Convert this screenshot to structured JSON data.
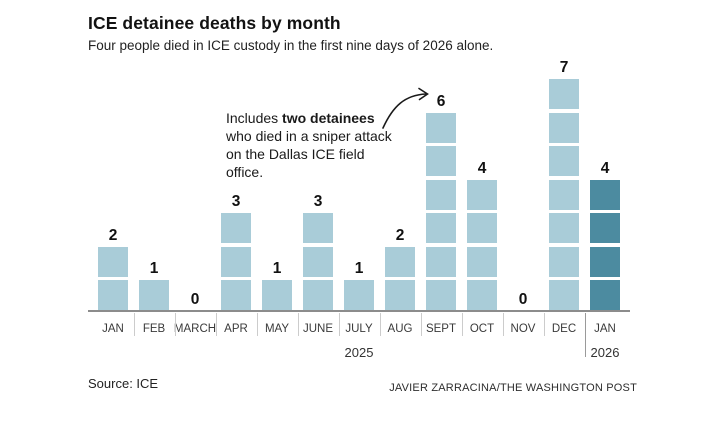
{
  "chart_data": {
    "type": "bar",
    "title": "ICE detainee deaths by month",
    "subtitle": "Four people died in ICE custody in the first nine days of 2026 alone.",
    "categories": [
      "JAN",
      "FEB",
      "MARCH",
      "APR",
      "MAY",
      "JUNE",
      "JULY",
      "AUG",
      "SEPT",
      "OCT",
      "NOV",
      "DEC",
      "JAN"
    ],
    "values": [
      2,
      1,
      0,
      3,
      1,
      3,
      1,
      2,
      6,
      4,
      0,
      7,
      4
    ],
    "xlabel": "",
    "ylabel": "",
    "ylim": [
      0,
      7
    ],
    "grid": false,
    "legend": "none",
    "year_labels": [
      {
        "text": "2025",
        "month_index": 6
      },
      {
        "text": "2026",
        "month_index": 12
      }
    ],
    "year_break_index": 12,
    "highlight_index": 12,
    "bar_color": "#a9ccd8",
    "highlight_color": "#4c8ba0",
    "annotation_target": {
      "category": "SEPT",
      "value": 6
    }
  },
  "annotation": {
    "full_text": "Includes two detainees who died in a sniper attack on the Dallas ICE field office.",
    "bold_text": "two detainees",
    "lines": [
      {
        "pre": "Includes ",
        "bold": "two detainees"
      },
      {
        "text": "who died in a sniper attack"
      },
      {
        "text": "on the Dallas ICE field"
      },
      {
        "text": "office."
      }
    ]
  },
  "footer": {
    "source": "Source: ICE",
    "credit": "JAVIER ZARRACINA/THE WASHINGTON POST"
  }
}
